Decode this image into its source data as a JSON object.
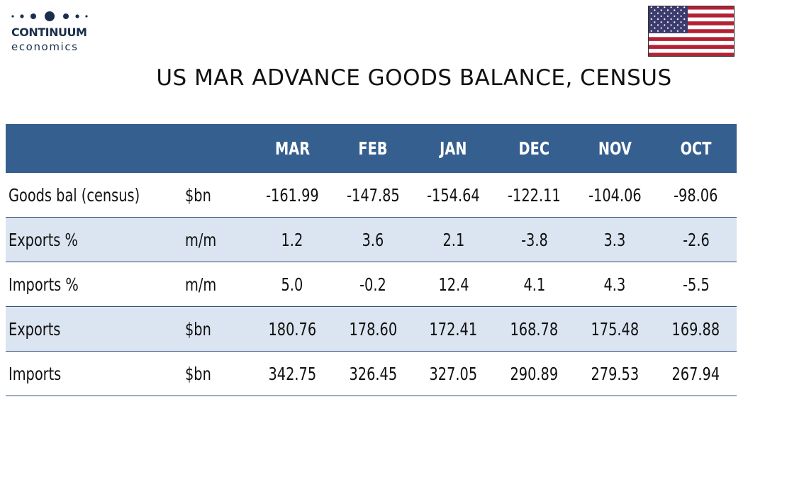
{
  "logo": {
    "name": "CONTINUUM",
    "sub": "economics"
  },
  "flag_icon": "us-flag-icon",
  "title": "US MAR ADVANCE GOODS BALANCE, CENSUS",
  "colors": {
    "header_bg": "#355f8f",
    "alt_row_bg": "#dbe5f1",
    "rule": "#2f4f74",
    "logo": "#1b2f4d"
  },
  "table": {
    "columns": [
      "MAR",
      "FEB",
      "JAN",
      "DEC",
      "NOV",
      "OCT"
    ],
    "rows": [
      {
        "label": "Goods bal (census)",
        "unit": "$bn",
        "values": [
          "-161.99",
          "-147.85",
          "-154.64",
          "-122.11",
          "-104.06",
          "-98.06"
        ]
      },
      {
        "label": "Exports %",
        "unit": "m/m",
        "values": [
          "1.2",
          "3.6",
          "2.1",
          "-3.8",
          "3.3",
          "-2.6"
        ]
      },
      {
        "label": "Imports %",
        "unit": "m/m",
        "values": [
          "5.0",
          "-0.2",
          "12.4",
          "4.1",
          "4.3",
          "-5.5"
        ]
      },
      {
        "label": "Exports",
        "unit": "$bn",
        "values": [
          "180.76",
          "178.60",
          "172.41",
          "168.78",
          "175.48",
          "169.88"
        ]
      },
      {
        "label": "Imports",
        "unit": "$bn",
        "values": [
          "342.75",
          "326.45",
          "327.05",
          "290.89",
          "279.53",
          "267.94"
        ]
      }
    ]
  }
}
